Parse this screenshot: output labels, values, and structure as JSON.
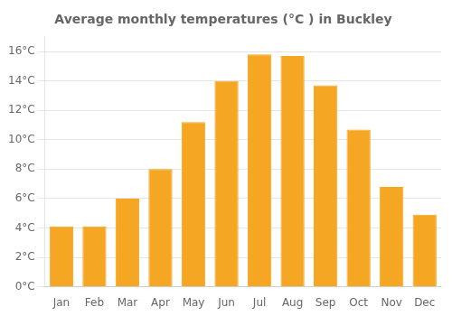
{
  "chart_data": {
    "type": "bar",
    "title": "Average monthly temperatures (°C ) in Buckley",
    "categories": [
      "Jan",
      "Feb",
      "Mar",
      "Apr",
      "May",
      "Jun",
      "Jul",
      "Aug",
      "Sep",
      "Oct",
      "Nov",
      "Dec"
    ],
    "values": [
      4.1,
      4.1,
      6.0,
      8.0,
      11.2,
      14.0,
      15.8,
      15.7,
      13.7,
      10.7,
      6.8,
      4.9
    ],
    "color": "#F5A623",
    "ylim": [
      0,
      17.0
    ],
    "yticks": [
      {
        "value": 0,
        "label": "0°C"
      },
      {
        "value": 2,
        "label": "2°C"
      },
      {
        "value": 4,
        "label": "4°C"
      },
      {
        "value": 6,
        "label": "6°C"
      },
      {
        "value": 8,
        "label": "8°C"
      },
      {
        "value": 10,
        "label": "10°C"
      },
      {
        "value": 12,
        "label": "12°C"
      },
      {
        "value": 14,
        "label": "14°C"
      },
      {
        "value": 16,
        "label": "16°C"
      }
    ],
    "grid": true
  }
}
